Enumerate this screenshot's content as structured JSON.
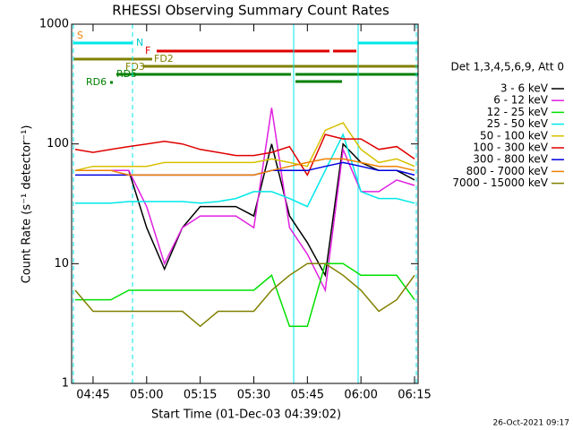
{
  "chart_data": {
    "type": "line",
    "title": "RHESSI Observing Summary Count Rates",
    "x_label": "Start Time (01-Dec-03 04:39:02)",
    "y_label": "Count Rate (s⁻¹ detector⁻¹)",
    "footer": "26-Oct-2021 09:17",
    "legend_title": "Det 1,3,4,5,6,9, Att 0",
    "log_scale": true,
    "xlim": [
      "04:39",
      "06:16"
    ],
    "xticks": [
      "04:45",
      "05:00",
      "05:15",
      "05:30",
      "05:45",
      "06:00",
      "06:15"
    ],
    "ylim": [
      1,
      1000
    ],
    "yticks": [
      1,
      10,
      100,
      1000
    ],
    "annotations": [
      "S",
      "N",
      "F",
      "FD2",
      "FD3",
      "RD5",
      "RD6"
    ],
    "x": [
      "04:40",
      "04:45",
      "04:50",
      "04:55",
      "05:00",
      "05:05",
      "05:10",
      "05:15",
      "05:20",
      "05:25",
      "05:30",
      "05:35",
      "05:40",
      "05:45",
      "05:50",
      "05:55",
      "06:00",
      "06:05",
      "06:10",
      "06:15"
    ],
    "series": [
      {
        "name": "3 - 6 keV",
        "color": "#000000",
        "values": [
          60,
          60,
          60,
          60,
          20,
          9,
          20,
          30,
          30,
          30,
          25,
          100,
          25,
          15,
          8,
          100,
          70,
          60,
          60,
          50
        ]
      },
      {
        "name": "6 - 12 keV",
        "color": "#e020e0",
        "values": [
          60,
          60,
          60,
          60,
          30,
          10,
          20,
          25,
          25,
          25,
          20,
          200,
          20,
          12,
          6,
          90,
          40,
          40,
          50,
          45
        ]
      },
      {
        "name": "12 - 25 keV",
        "color": "#00e000",
        "values": [
          5,
          5,
          5,
          6,
          6,
          6,
          6,
          6,
          6,
          6,
          6,
          8,
          3,
          3,
          10,
          10,
          8,
          8,
          8,
          5
        ]
      },
      {
        "name": "25 - 50 keV",
        "color": "#00e8e8",
        "values": [
          32,
          32,
          32,
          33,
          33,
          33,
          33,
          32,
          33,
          35,
          40,
          40,
          35,
          30,
          60,
          120,
          40,
          35,
          35,
          32
        ]
      },
      {
        "name": "50 - 100 keV",
        "color": "#d8c000",
        "values": [
          60,
          65,
          65,
          65,
          65,
          70,
          70,
          70,
          70,
          70,
          70,
          75,
          70,
          65,
          130,
          150,
          90,
          70,
          75,
          65
        ]
      },
      {
        "name": "100 - 300 keV",
        "color": "#e00000",
        "values": [
          90,
          85,
          90,
          95,
          100,
          105,
          100,
          90,
          85,
          80,
          80,
          85,
          95,
          55,
          120,
          110,
          110,
          90,
          95,
          75
        ]
      },
      {
        "name": "300 - 800 keV",
        "color": "#0000e0",
        "values": [
          55,
          55,
          55,
          55,
          55,
          55,
          55,
          55,
          55,
          55,
          55,
          60,
          60,
          60,
          65,
          70,
          65,
          60,
          60,
          55
        ]
      },
      {
        "name": "800 - 7000 keV",
        "color": "#f08000",
        "values": [
          60,
          60,
          60,
          55,
          55,
          55,
          55,
          55,
          55,
          55,
          55,
          60,
          65,
          70,
          75,
          75,
          70,
          65,
          65,
          60
        ]
      },
      {
        "name": "7000 - 15000 keV",
        "color": "#808000",
        "values": [
          6,
          4,
          4,
          4,
          4,
          4,
          4,
          3,
          4,
          4,
          4,
          6,
          8,
          10,
          10,
          8,
          6,
          4,
          5,
          8
        ]
      }
    ]
  }
}
